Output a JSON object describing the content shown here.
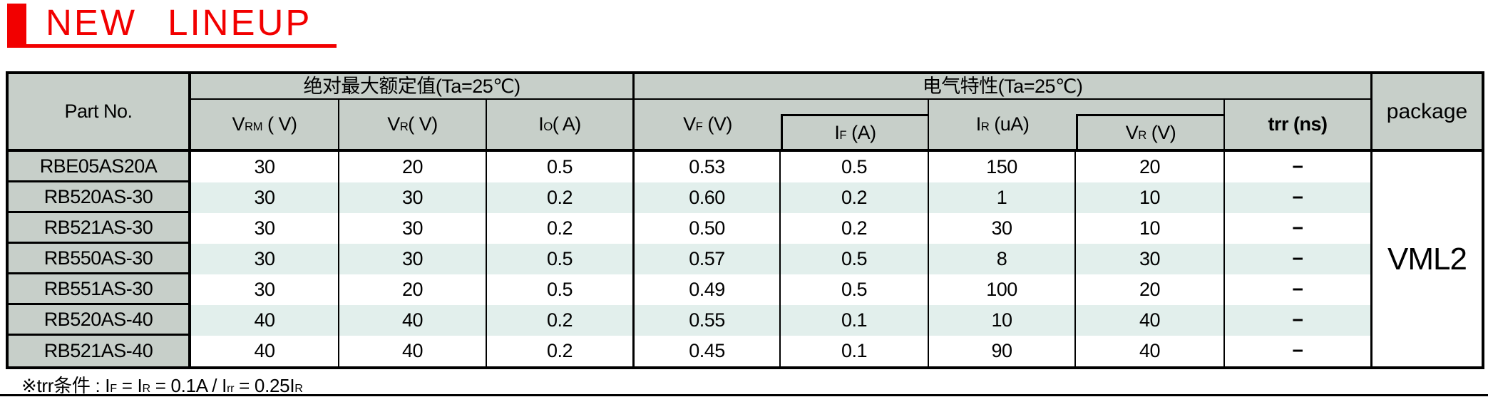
{
  "title": {
    "text": "NEW LINEUP",
    "color": "#f20000"
  },
  "table": {
    "colors": {
      "header_bg": "#c7cfc9",
      "alt_row_bg": "#e2efec",
      "border": "#000000"
    },
    "header": {
      "part_no": "Part No.",
      "group_abs_max": "绝对最大额定值(Ta=25℃)",
      "group_elec": "电气特性(Ta=25℃)",
      "package": "package",
      "col_vrm": [
        {
          "t": "V"
        },
        {
          "s": "RM"
        },
        {
          "t": " ( V)"
        }
      ],
      "col_vr": [
        {
          "t": "V"
        },
        {
          "s": "R"
        },
        {
          "t": "( V)"
        }
      ],
      "col_io": [
        {
          "t": "I"
        },
        {
          "s": "O"
        },
        {
          "t": "( A)"
        }
      ],
      "col_vf": [
        {
          "t": "V"
        },
        {
          "s": "F"
        },
        {
          "t": " (V)"
        }
      ],
      "col_if": [
        {
          "t": "I"
        },
        {
          "s": "F"
        },
        {
          "t": " (A)"
        }
      ],
      "col_ir": [
        {
          "t": "I"
        },
        {
          "s": "R"
        },
        {
          "t": " (uA)"
        }
      ],
      "col_vr2": [
        {
          "t": "V"
        },
        {
          "s": "R"
        },
        {
          "t": " (V)"
        }
      ],
      "col_trr": [
        {
          "t": "trr (ns)"
        }
      ]
    },
    "package_value": "VML2",
    "rows": [
      {
        "part_no": "RBE05AS20A",
        "vrm": "30",
        "vr": "20",
        "io": "0.5",
        "vf": "0.53",
        "if": "0.5",
        "ir": "150",
        "vr2": "20",
        "trr": "−"
      },
      {
        "part_no": "RB520AS-30",
        "vrm": "30",
        "vr": "30",
        "io": "0.2",
        "vf": "0.60",
        "if": "0.2",
        "ir": "1",
        "vr2": "10",
        "trr": "−"
      },
      {
        "part_no": "RB521AS-30",
        "vrm": "30",
        "vr": "30",
        "io": "0.2",
        "vf": "0.50",
        "if": "0.2",
        "ir": "30",
        "vr2": "10",
        "trr": "−"
      },
      {
        "part_no": "RB550AS-30",
        "vrm": "30",
        "vr": "30",
        "io": "0.5",
        "vf": "0.57",
        "if": "0.5",
        "ir": "8",
        "vr2": "30",
        "trr": "−"
      },
      {
        "part_no": "RB551AS-30",
        "vrm": "30",
        "vr": "20",
        "io": "0.5",
        "vf": "0.49",
        "if": "0.5",
        "ir": "100",
        "vr2": "20",
        "trr": "−"
      },
      {
        "part_no": "RB520AS-40",
        "vrm": "40",
        "vr": "40",
        "io": "0.2",
        "vf": "0.55",
        "if": "0.1",
        "ir": "10",
        "vr2": "40",
        "trr": "−"
      },
      {
        "part_no": "RB521AS-40",
        "vrm": "40",
        "vr": "40",
        "io": "0.2",
        "vf": "0.45",
        "if": "0.1",
        "ir": "90",
        "vr2": "40",
        "trr": "−"
      }
    ]
  },
  "footnote": [
    {
      "t": "※trr条件 : I"
    },
    {
      "s": "F"
    },
    {
      "t": " = I"
    },
    {
      "s": "R"
    },
    {
      "t": " = 0.1A / I"
    },
    {
      "s": "rr"
    },
    {
      "t": " = 0.25I"
    },
    {
      "s": "R"
    }
  ]
}
